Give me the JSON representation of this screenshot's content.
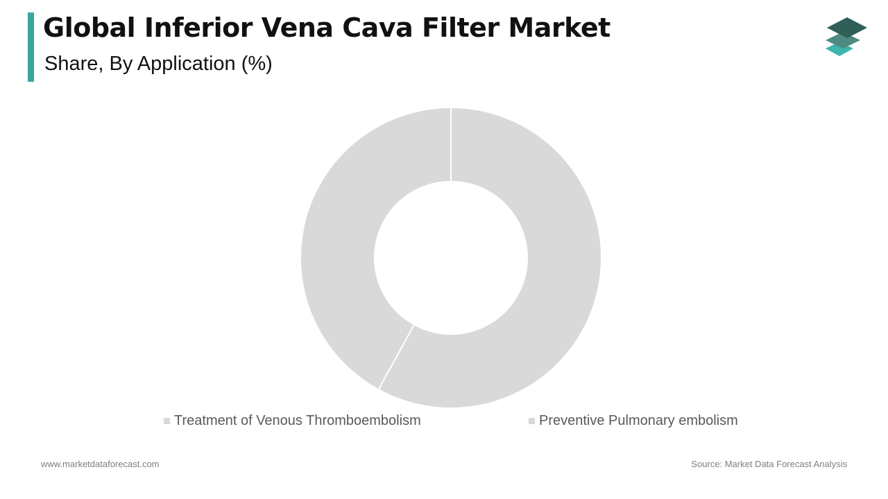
{
  "header": {
    "title": "Global Inferior Vena Cava Filter Market",
    "subtitle": "Share, By Application  (%)"
  },
  "colors": {
    "accent": "#3aa6a0",
    "slice": "#d9d9d9",
    "slice_border": "#ffffff",
    "logo_top": "#2f5f58",
    "logo_mid": "#4f8a82",
    "logo_bottom": "#3fb4ad"
  },
  "icons": {
    "logo": "stacked-layers-logo-icon"
  },
  "chart_data": {
    "type": "pie",
    "variant": "donut",
    "title": "",
    "categories": [
      "Treatment of Venous Thromboembolism",
      "Preventive Pulmonary embolism"
    ],
    "values": [
      58,
      42
    ],
    "legend": "bottom"
  },
  "footer": {
    "website": "www.marketdataforecast.com",
    "source": "Source: Market Data Forecast Analysis"
  }
}
